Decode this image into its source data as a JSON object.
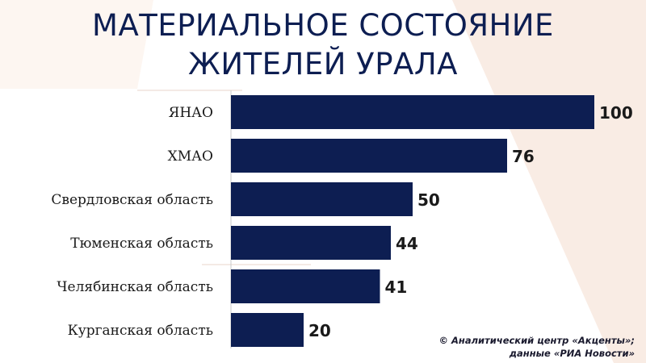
{
  "title": {
    "line1": "МАТЕРИАЛЬНОЕ СОСТОЯНИЕ",
    "line2": "ЖИТЕЛЕЙ УРАЛА"
  },
  "source": {
    "line1": "© Аналитический центр «Акценты»;",
    "line2": "данные «РИА Новости»"
  },
  "colors": {
    "bar": "#0d1e52",
    "title": "#0d1e52",
    "background_accent": "#f9ece4"
  },
  "chart_data": {
    "type": "bar",
    "orientation": "horizontal",
    "categories": [
      "ЯНАО",
      "ХМАО",
      "Свердловская область",
      "Тюменская область",
      "Челябинская область",
      "Курганская область"
    ],
    "values": [
      100,
      76,
      50,
      44,
      41,
      20
    ],
    "xlim": [
      0,
      100
    ],
    "grid": false,
    "legend": false,
    "data_labels": true
  }
}
